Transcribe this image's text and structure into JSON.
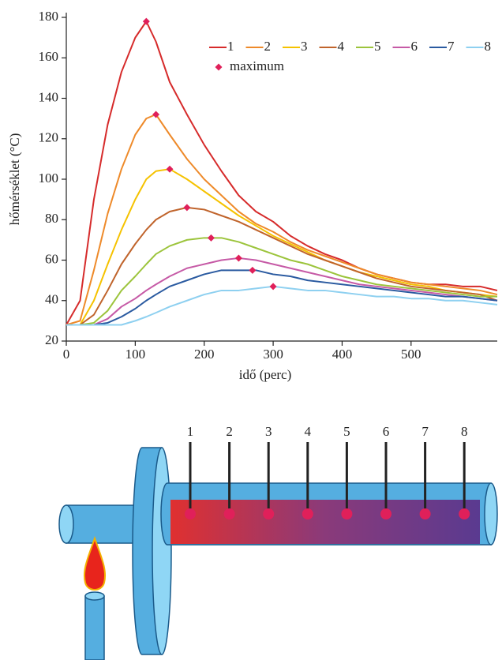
{
  "chart_data": {
    "type": "line",
    "xlabel": "idő (perc)",
    "ylabel": "hőmérséklet (°C)",
    "x": [
      0,
      20,
      40,
      60,
      80,
      100,
      116,
      130,
      150,
      175,
      200,
      225,
      250,
      275,
      300,
      325,
      350,
      375,
      400,
      425,
      450,
      475,
      500,
      525,
      550,
      575,
      600,
      625
    ],
    "xlim": [
      0,
      625
    ],
    "xticks": [
      0,
      100,
      200,
      300,
      400,
      500
    ],
    "ylim": [
      20,
      180
    ],
    "yticks": [
      20,
      40,
      60,
      80,
      100,
      120,
      140,
      160,
      180
    ],
    "legend": "upper right",
    "series": [
      {
        "name": "1",
        "color": "#d62b2b",
        "values": [
          28,
          40,
          90,
          127,
          153,
          170,
          178,
          168,
          148,
          132,
          117,
          104,
          92,
          84,
          79,
          72,
          67,
          63,
          60,
          56,
          53,
          51,
          49,
          48,
          48,
          47,
          47,
          45
        ]
      },
      {
        "name": "2",
        "color": "#ee8a2a",
        "values": [
          28,
          30,
          55,
          83,
          105,
          122,
          130,
          132,
          122,
          110,
          100,
          92,
          84,
          78,
          74,
          69,
          65,
          62,
          59,
          56,
          53,
          51,
          49,
          48,
          47,
          46,
          45,
          43
        ]
      },
      {
        "name": "3",
        "color": "#f5c200",
        "values": [
          28,
          28,
          40,
          58,
          75,
          90,
          100,
          104,
          105,
          100,
          94,
          88,
          82,
          77,
          72,
          68,
          64,
          60,
          57,
          54,
          52,
          50,
          48,
          47,
          45,
          44,
          43,
          42
        ]
      },
      {
        "name": "4",
        "color": "#c0642c",
        "values": [
          28,
          28,
          33,
          45,
          58,
          68,
          75,
          80,
          84,
          86,
          85,
          82,
          79,
          75,
          71,
          67,
          63,
          60,
          57,
          54,
          51,
          49,
          47,
          46,
          45,
          44,
          43,
          40
        ]
      },
      {
        "name": "5",
        "color": "#9cc43c",
        "values": [
          28,
          28,
          29,
          35,
          45,
          52,
          58,
          63,
          67,
          70,
          71,
          71,
          69,
          66,
          63,
          60,
          58,
          55,
          52,
          50,
          48,
          47,
          46,
          45,
          44,
          43,
          42,
          42
        ]
      },
      {
        "name": "6",
        "color": "#c65aa6",
        "values": [
          28,
          28,
          28,
          31,
          37,
          41,
          45,
          48,
          52,
          56,
          58,
          60,
          61,
          60,
          58,
          56,
          54,
          52,
          50,
          48,
          47,
          46,
          45,
          44,
          43,
          42,
          41,
          40
        ]
      },
      {
        "name": "7",
        "color": "#2a5aa0",
        "values": [
          28,
          28,
          28,
          29,
          32,
          36,
          40,
          43,
          47,
          50,
          53,
          55,
          55,
          55,
          53,
          52,
          50,
          49,
          48,
          47,
          46,
          45,
          44,
          43,
          42,
          42,
          41,
          40
        ]
      },
      {
        "name": "8",
        "color": "#8ed0f0",
        "values": [
          28,
          28,
          28,
          28,
          28,
          30,
          32,
          34,
          37,
          40,
          43,
          45,
          45,
          46,
          47,
          46,
          45,
          45,
          44,
          43,
          42,
          42,
          41,
          41,
          40,
          40,
          39,
          38
        ]
      }
    ],
    "maximum": {
      "name": "maximum",
      "type": "scatter",
      "color": "#e0205a",
      "x": [
        116,
        130,
        150,
        175,
        210,
        250,
        270,
        300
      ],
      "values": [
        178,
        132,
        105,
        86,
        71,
        61,
        55,
        47
      ]
    }
  },
  "diagram": {
    "probes": [
      "1",
      "2",
      "3",
      "4",
      "5",
      "6",
      "7",
      "8"
    ]
  }
}
